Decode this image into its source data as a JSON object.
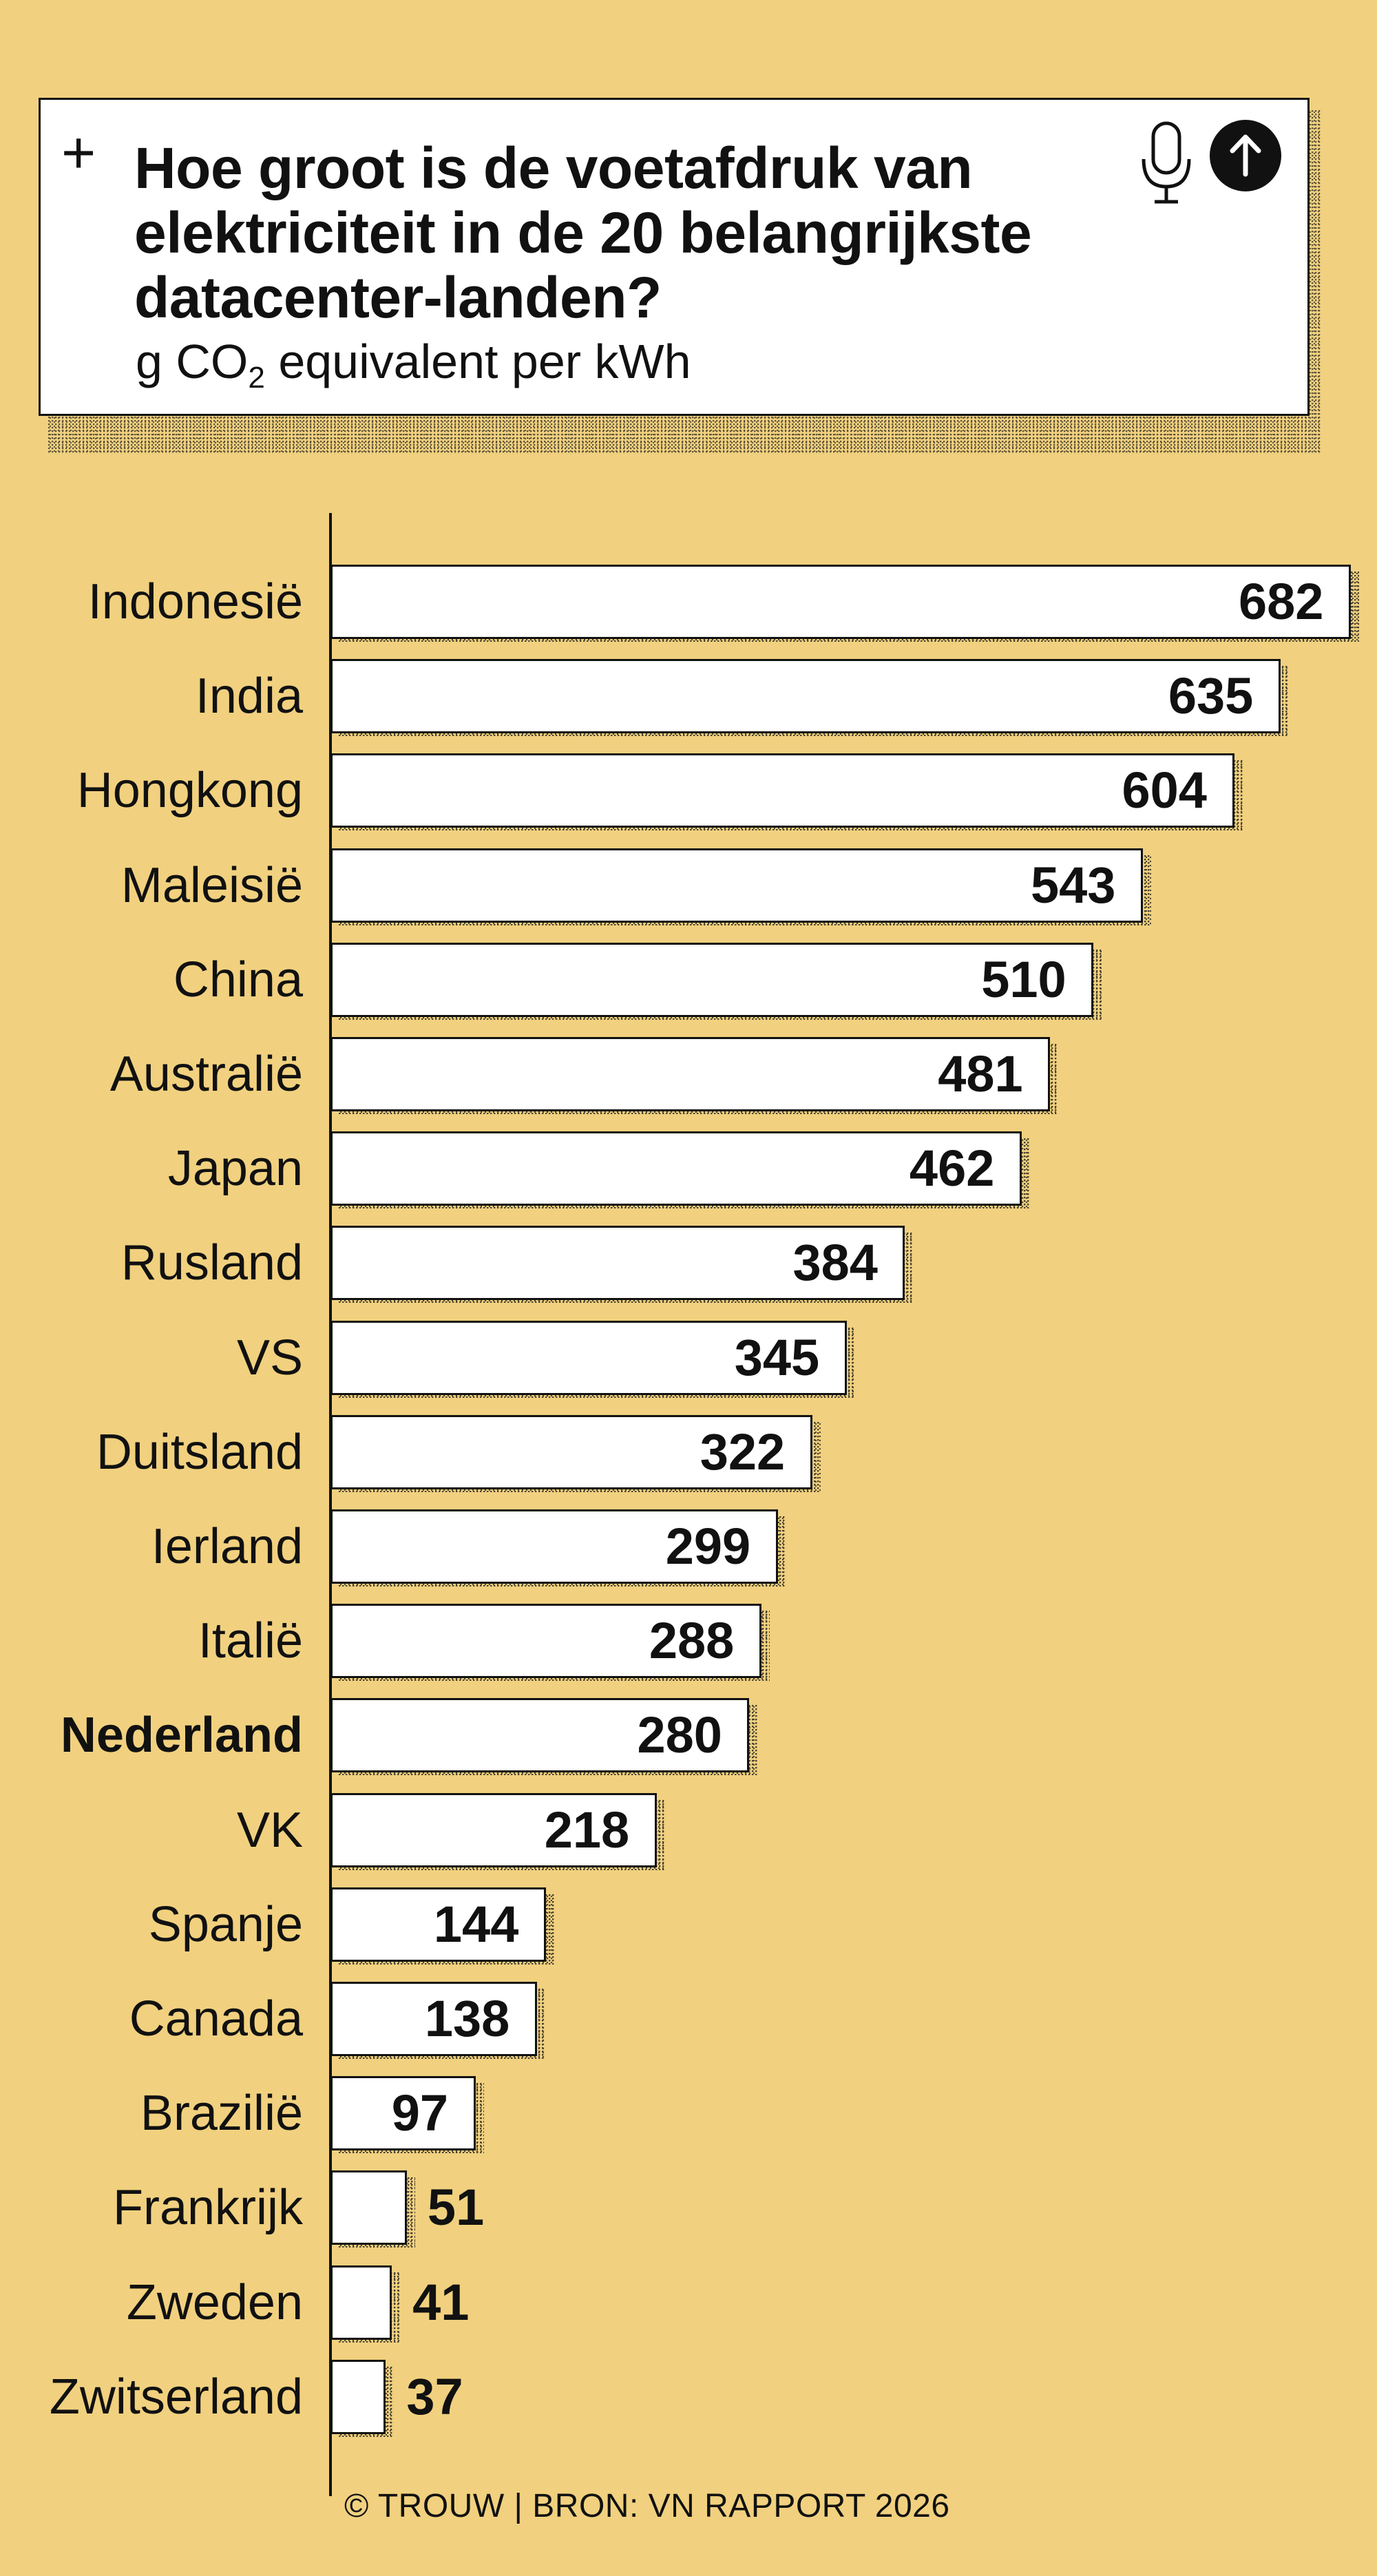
{
  "header": {
    "plus_icon": "+",
    "title": "Hoe groot is de voetafdruk van elektriciteit in de 20 belangrijkste datacenter-landen?",
    "subtitle_pre": "g CO",
    "subtitle_sub": "2",
    "subtitle_post": " equivalent per kWh",
    "icons": [
      "microphone-icon",
      "arrow-up-circle-icon"
    ]
  },
  "footer": "© TROUW | BRON: VN RAPPORT 2026",
  "colors": {
    "background": "#f1d17f",
    "bar": "#ffffff",
    "ink": "#111111"
  },
  "chart_data": {
    "type": "bar",
    "orientation": "horizontal",
    "title": "Hoe groot is de voetafdruk van elektriciteit in de 20 belangrijkste datacenter-landen?",
    "subtitle": "g CO2 equivalent per kWh",
    "categories": [
      "Indonesië",
      "India",
      "Hongkong",
      "Maleisië",
      "China",
      "Australië",
      "Japan",
      "Rusland",
      "VS",
      "Duitsland",
      "Ierland",
      "Italië",
      "Nederland",
      "VK",
      "Spanje",
      "Canada",
      "Brazilië",
      "Frankrijk",
      "Zweden",
      "Zwitserland"
    ],
    "values": [
      682,
      635,
      604,
      543,
      510,
      481,
      462,
      384,
      345,
      322,
      299,
      288,
      280,
      218,
      144,
      138,
      97,
      51,
      41,
      37
    ],
    "highlight": "Nederland",
    "xlim": [
      0,
      682
    ],
    "grid": false,
    "data_labels": true
  }
}
